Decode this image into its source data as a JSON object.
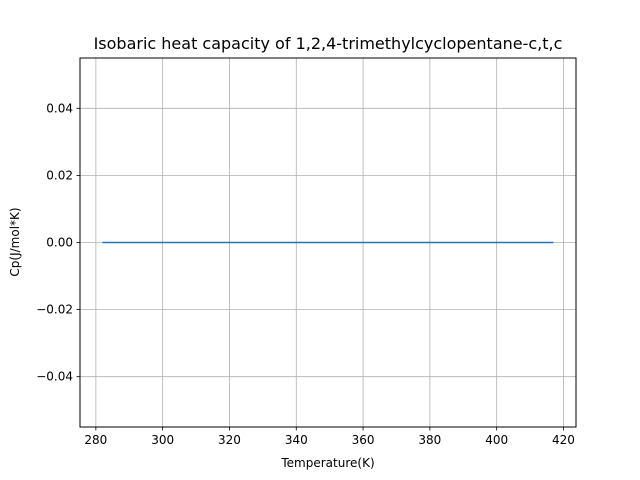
{
  "chart_data": {
    "type": "line",
    "title": "Isobaric heat capacity of 1,2,4-trimethylcyclopentane-c,t,c",
    "xlabel": "Temperature(K)",
    "ylabel": "Cp(J/mol*K)",
    "xlim": [
      275.25,
      423.75
    ],
    "ylim": [
      -0.055,
      0.055
    ],
    "xticks": [
      280,
      300,
      320,
      340,
      360,
      380,
      400,
      420
    ],
    "xtick_labels": [
      "280",
      "300",
      "320",
      "340",
      "360",
      "380",
      "400",
      "420"
    ],
    "yticks": [
      -0.04,
      -0.02,
      0.0,
      0.02,
      0.04
    ],
    "ytick_labels": [
      "−0.04",
      "−0.02",
      "0.00",
      "0.02",
      "0.04"
    ],
    "grid": true,
    "series": [
      {
        "color": "#1f77b4",
        "x": [
          282,
          417
        ],
        "y": [
          0,
          0
        ]
      }
    ]
  }
}
